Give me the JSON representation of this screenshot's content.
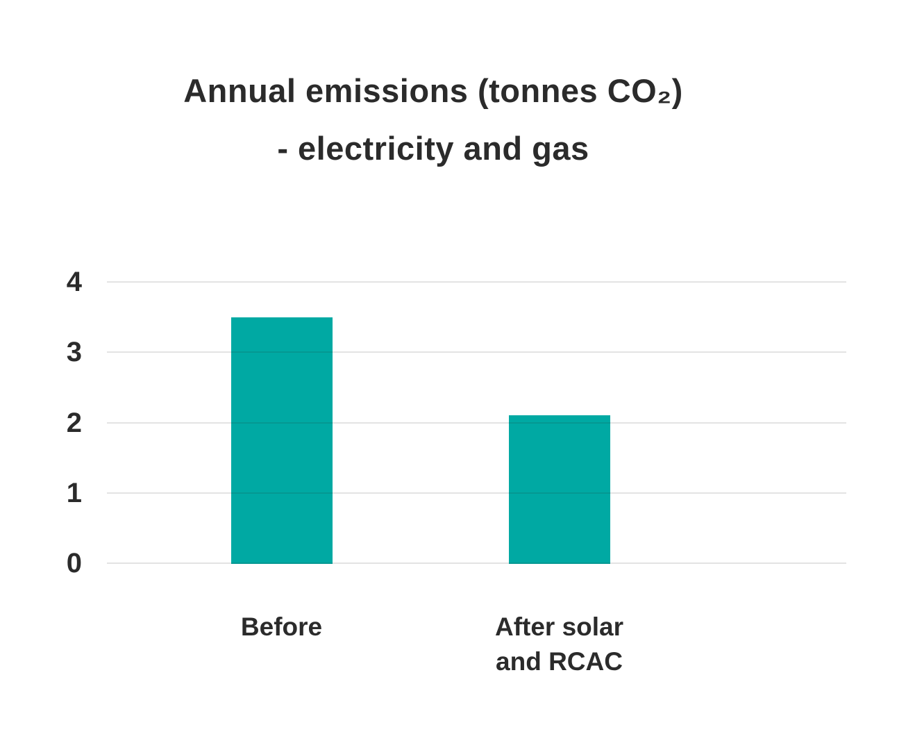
{
  "chart_data": {
    "type": "bar",
    "title": "Annual emissions (tonnes CO₂) - electricity and gas",
    "title_lines": [
      "Annual emissions (tonnes CO₂)",
      "- electricity and gas"
    ],
    "categories": [
      "Before",
      "After solar and RCAC"
    ],
    "category_lines": [
      [
        "Before"
      ],
      [
        "After solar",
        "and RCAC"
      ]
    ],
    "values": [
      3.5,
      2.1
    ],
    "xlabel": "",
    "ylabel": "",
    "yticks": [
      0,
      1,
      2,
      3,
      4
    ],
    "ylim": [
      0,
      4
    ],
    "grid": "horizontal gridlines only, drawn over bars",
    "legend_position": "none",
    "bar_color": "#00a9a3",
    "text_color": "#2b2b2b",
    "gridline_color": "#e0e0e0",
    "background_color": "#ffffff"
  }
}
